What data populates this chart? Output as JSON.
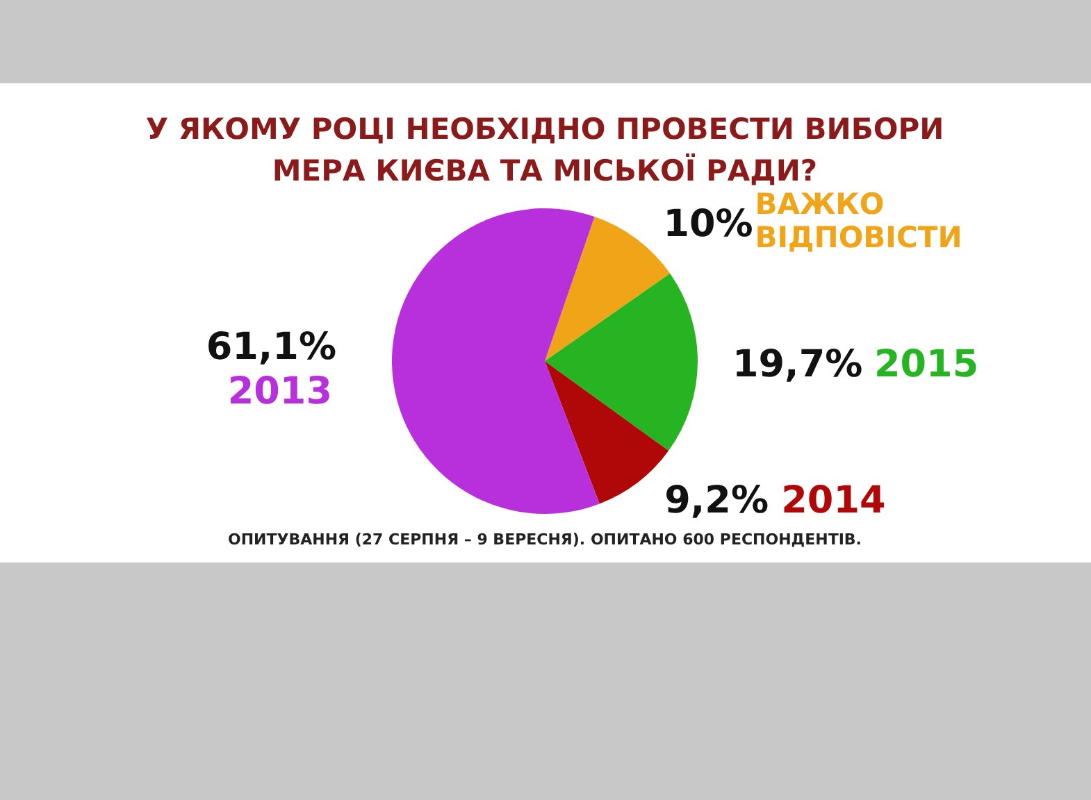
{
  "chart_data": {
    "type": "pie",
    "title": "У ЯКОМУ РОЦІ НЕОБХІДНО ПРОВЕСТИ ВИБОРИ МЕРА КИЄВА ТА МІСЬКОЇ РАДИ?",
    "categories": [
      "ВАЖКО ВІДПОВІСТИ",
      "2015",
      "2014",
      "2013"
    ],
    "values": [
      10,
      19.7,
      9.2,
      61.1
    ],
    "value_labels": [
      "10%",
      "19,7%",
      "9,2%",
      "61,1%"
    ],
    "colors": [
      "#f0a418",
      "#27b423",
      "#b00808",
      "#b830dc"
    ],
    "annotations": [
      "ОПИТУВАННЯ (27 СЕРПНЯ – 9 ВЕРЕСНЯ). ОПИТАНО 600 РЕСПОНДЕНТІВ."
    ]
  }
}
